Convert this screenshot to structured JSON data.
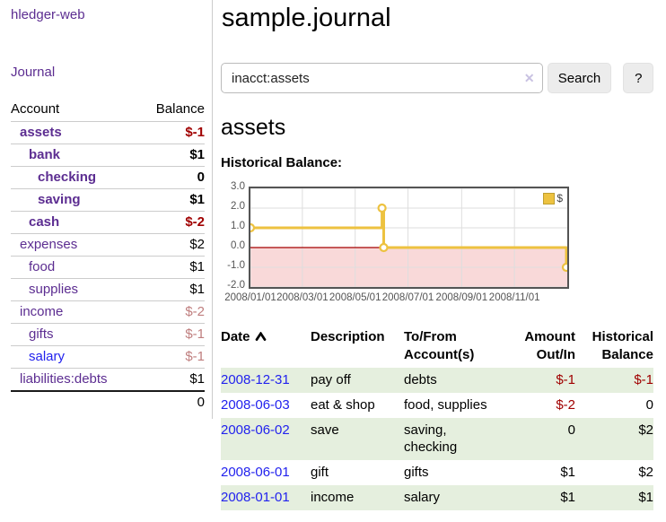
{
  "colors": {
    "link_purple": "#5c2d91",
    "link_blue": "#2222ee",
    "negative_strong": "#a00000",
    "negative_soft": "#bf7e7e",
    "row_stripe_green": "#e5efde",
    "series_gold": "#edc240",
    "zero_line_red": "#a40000",
    "negative_region_pink": "#f9d9d9",
    "grid_gray": "#dedede",
    "plot_border": "#545454"
  },
  "sidebar": {
    "brand": "hledger-web",
    "journal_link": "Journal",
    "accounts_table": {
      "headers": {
        "account": "Account",
        "balance": "Balance"
      },
      "rows": [
        {
          "account": "assets",
          "balance": "$-1",
          "level": 1,
          "bold": true,
          "neg": "strong"
        },
        {
          "account": "bank",
          "balance": "$1",
          "level": 2,
          "bold": true,
          "neg": "none"
        },
        {
          "account": "checking",
          "balance": "0",
          "level": 3,
          "bold": true,
          "neg": "none"
        },
        {
          "account": "saving",
          "balance": "$1",
          "level": 3,
          "bold": true,
          "neg": "none"
        },
        {
          "account": "cash",
          "balance": "$-2",
          "level": 2,
          "bold": true,
          "neg": "strong"
        },
        {
          "account": "expenses",
          "balance": "$2",
          "level": 1,
          "bold": false,
          "neg": "none"
        },
        {
          "account": "food",
          "balance": "$1",
          "level": 2,
          "bold": false,
          "neg": "none"
        },
        {
          "account": "supplies",
          "balance": "$1",
          "level": 2,
          "bold": false,
          "neg": "none"
        },
        {
          "account": "income",
          "balance": "$-2",
          "level": 1,
          "bold": false,
          "neg": "soft"
        },
        {
          "account": "gifts",
          "balance": "$-1",
          "level": 2,
          "bold": false,
          "neg": "soft"
        },
        {
          "account": "salary",
          "balance": "$-1",
          "level": 2,
          "bold": false,
          "neg": "soft",
          "link_style": "unvisited"
        },
        {
          "account": "liabilities:debts",
          "balance": "$1",
          "level": 1,
          "bold": false,
          "neg": "none"
        }
      ],
      "total": "0"
    }
  },
  "main": {
    "title": "sample.journal",
    "search": {
      "value": "inacct:assets",
      "clear_icon": "✕",
      "search_button": "Search",
      "help_button": "?"
    },
    "account_heading": "assets",
    "chart_label": "Historical Balance:",
    "register_table": {
      "headers": {
        "date": "Date",
        "description": "Description",
        "to_from": "To/From Account(s)",
        "amount": "Amount Out/In",
        "historical": "Historical Balance"
      },
      "rows": [
        {
          "date": "2008-12-31",
          "description": "pay off",
          "to_from": "debts",
          "amount": "$-1",
          "historical": "$-1",
          "amount_neg": true,
          "historical_neg": true
        },
        {
          "date": "2008-06-03",
          "description": "eat & shop",
          "to_from": "food, supplies",
          "amount": "$-2",
          "historical": "0",
          "amount_neg": true,
          "historical_neg": false
        },
        {
          "date": "2008-06-02",
          "description": "save",
          "to_from": "saving, checking",
          "amount": "0",
          "historical": "$2",
          "amount_neg": false,
          "historical_neg": false
        },
        {
          "date": "2008-06-01",
          "description": "gift",
          "to_from": "gifts",
          "amount": "$1",
          "historical": "$2",
          "amount_neg": false,
          "historical_neg": false
        },
        {
          "date": "2008-01-01",
          "description": "income",
          "to_from": "salary",
          "amount": "$1",
          "historical": "$1",
          "amount_neg": false,
          "historical_neg": false
        }
      ]
    }
  },
  "chart_data": {
    "type": "line",
    "title": "Historical Balance",
    "series": [
      {
        "name": "$",
        "color": "#edc240",
        "step": true,
        "points": [
          [
            "2008-01-01",
            1
          ],
          [
            "2008-06-01",
            2
          ],
          [
            "2008-06-03",
            0
          ],
          [
            "2008-12-31",
            -1
          ]
        ]
      }
    ],
    "xlim": [
      "2008-01-01",
      "2009-01-01"
    ],
    "ylim": [
      -2,
      3
    ],
    "y_ticks": [
      "3.0",
      "2.0",
      "1.0",
      "0.0",
      "-1.0",
      "-2.0"
    ],
    "y_tick_values": [
      3,
      2,
      1,
      0,
      -1,
      -2
    ],
    "x_ticks": [
      "2008/01/01",
      "2008/03/01",
      "2008/05/01",
      "2008/07/01",
      "2008/09/01",
      "2008/11/01"
    ],
    "x_tick_values": [
      "2008-01-01",
      "2008-03-01",
      "2008-05-01",
      "2008-07-01",
      "2008-09-01",
      "2008-11-01"
    ],
    "grid": true,
    "legend_position": "top-right",
    "markers": true
  }
}
